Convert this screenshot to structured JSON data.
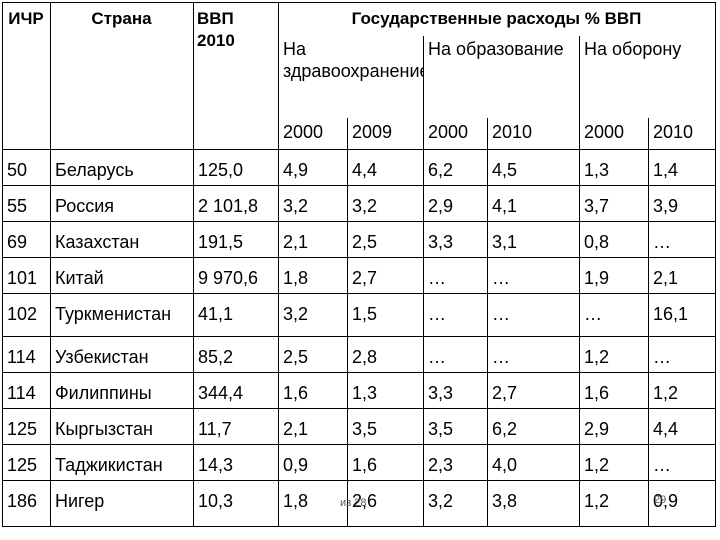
{
  "header": {
    "rank": "ИЧР",
    "country": "Страна",
    "gdp": "ВВП 2010",
    "spending": "Государственные расходы % ВВП",
    "health": "На здравоохранение",
    "education": "На образование",
    "defense": "На оборону",
    "years": [
      "2000",
      "2009",
      "2000",
      "2010",
      "2000",
      "2010"
    ]
  },
  "rows": [
    {
      "rank": "50",
      "country": "Беларусь",
      "gdp": "125,0",
      "v": [
        "4,9",
        "4,4",
        "6,2",
        "4,5",
        "1,3",
        "1,4"
      ]
    },
    {
      "rank": "55",
      "country": "Россия",
      "gdp": "2 101,8",
      "v": [
        "3,2",
        "3,2",
        "2,9",
        "4,1",
        "3,7",
        "3,9"
      ]
    },
    {
      "rank": "69",
      "country": "Казахстан",
      "gdp": "191,5",
      "v": [
        "2,1",
        "2,5",
        "3,3",
        "3,1",
        "0,8",
        "…"
      ]
    },
    {
      "rank": "101",
      "country": "Китай",
      "gdp": "9 970,6",
      "v": [
        "1,8",
        "2,7",
        "…",
        "…",
        "1,9",
        "2,1"
      ]
    },
    {
      "rank": "102",
      "country": "Туркменистан",
      "gdp": "41,1",
      "v": [
        "3,2",
        "1,5",
        "…",
        "…",
        "…",
        "16,1"
      ]
    },
    {
      "rank": "114",
      "country": "Узбекистан",
      "gdp": "85,2",
      "v": [
        "2,5",
        "2,8",
        "…",
        "…",
        "1,2",
        "…"
      ]
    },
    {
      "rank": "114",
      "country": "Филиппины",
      "gdp": "344,4",
      "v": [
        "1,6",
        "1,3",
        "3,3",
        "2,7",
        "1,6",
        "1,2"
      ]
    },
    {
      "rank": "125",
      "country": "Кыргызстан",
      "gdp": "11,7",
      "v": [
        "2,1",
        "3,5",
        "3,5",
        "6,2",
        "2,9",
        "4,4"
      ]
    },
    {
      "rank": "125",
      "country": "Таджикистан",
      "gdp": "14,3",
      "v": [
        "0,9",
        "1,6",
        "2,3",
        "4,0",
        "1,2",
        "…"
      ]
    },
    {
      "rank": "186",
      "country": "Нигер",
      "gdp": "10,3",
      "v": [
        "1,8",
        "2,6",
        "3,2",
        "3,8",
        "1,2",
        "0,9"
      ]
    }
  ],
  "footer": {
    "source": "из 28",
    "page": "29"
  }
}
